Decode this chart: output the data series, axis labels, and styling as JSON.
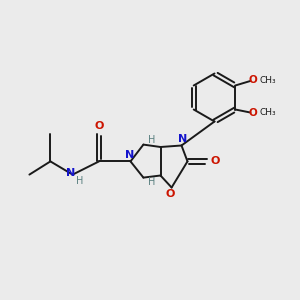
{
  "background_color": "#ebebeb",
  "bond_color": "#1a1a1a",
  "N_color": "#1414cc",
  "O_color": "#cc1400",
  "H_color": "#5a8080",
  "figsize": [
    3.0,
    3.0
  ],
  "dpi": 100,
  "xlim": [
    0,
    10
  ],
  "ylim": [
    0,
    10
  ]
}
